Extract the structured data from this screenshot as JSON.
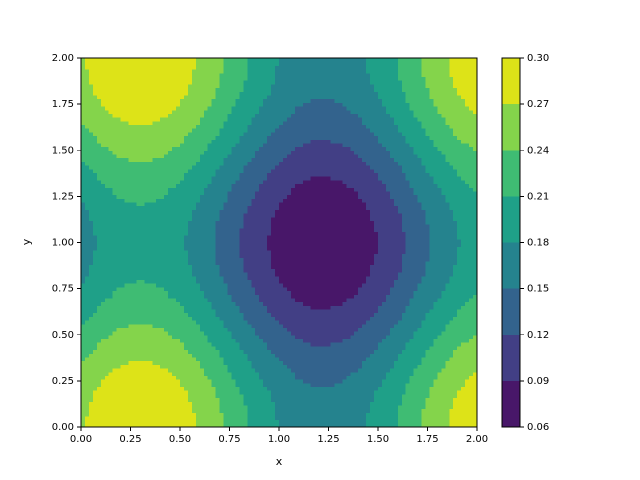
{
  "chart_data": {
    "type": "contourf",
    "xlabel": "x",
    "ylabel": "y",
    "xlim": [
      0,
      2
    ],
    "ylim": [
      0,
      2
    ],
    "xticks": [
      {
        "value": 0,
        "label": "0.00"
      },
      {
        "value": 0.25,
        "label": "0.25"
      },
      {
        "value": 0.5,
        "label": "0.50"
      },
      {
        "value": 0.75,
        "label": "0.75"
      },
      {
        "value": 1,
        "label": "1.00"
      },
      {
        "value": 1.25,
        "label": "1.25"
      },
      {
        "value": 1.5,
        "label": "1.50"
      },
      {
        "value": 1.75,
        "label": "1.75"
      },
      {
        "value": 2,
        "label": "2.00"
      }
    ],
    "yticks": [
      {
        "value": 0,
        "label": "0.00"
      },
      {
        "value": 0.25,
        "label": "0.25"
      },
      {
        "value": 0.5,
        "label": "0.50"
      },
      {
        "value": 0.75,
        "label": "0.75"
      },
      {
        "value": 1,
        "label": "1.00"
      },
      {
        "value": 1.25,
        "label": "1.25"
      },
      {
        "value": 1.5,
        "label": "1.50"
      },
      {
        "value": 1.75,
        "label": "1.75"
      },
      {
        "value": 2,
        "label": "2.00"
      }
    ],
    "levels": [
      {
        "value": 0.06,
        "label": "0.06"
      },
      {
        "value": 0.09,
        "label": "0.09"
      },
      {
        "value": 0.12,
        "label": "0.12"
      },
      {
        "value": 0.15,
        "label": "0.15"
      },
      {
        "value": 0.18,
        "label": "0.18"
      },
      {
        "value": 0.21,
        "label": "0.21"
      },
      {
        "value": 0.24,
        "label": "0.24"
      },
      {
        "value": 0.27,
        "label": "0.27"
      },
      {
        "value": 0.3,
        "label": "0.30"
      }
    ],
    "colors": [
      "#481769",
      "#423f85",
      "#33638d",
      "#25838e",
      "#1fa088",
      "#3fbc73",
      "#84d44b",
      "#dde318"
    ],
    "x": [
      0,
      0.1,
      0.2,
      0.3,
      0.4,
      0.5,
      0.6,
      0.7,
      0.8,
      0.9,
      1,
      1.1,
      1.2,
      1.3,
      1.4,
      1.5,
      1.6,
      1.7,
      1.8,
      1.9,
      2
    ],
    "y": [
      0,
      0.1,
      0.2,
      0.3,
      0.4,
      0.5,
      0.6,
      0.7,
      0.8,
      0.9,
      1,
      1.1,
      1.2,
      1.3,
      1.4,
      1.5,
      1.6,
      1.7,
      1.8,
      1.9,
      2
    ],
    "z": [
      [
        0.266,
        0.284,
        0.296,
        0.3,
        0.296,
        0.284,
        0.266,
        0.244,
        0.22,
        0.198,
        0.179,
        0.166,
        0.16,
        0.163,
        0.173,
        0.19,
        0.211,
        0.235,
        0.258,
        0.278,
        0.292
      ],
      [
        0.264,
        0.282,
        0.294,
        0.298,
        0.294,
        0.282,
        0.264,
        0.242,
        0.218,
        0.196,
        0.177,
        0.164,
        0.158,
        0.161,
        0.171,
        0.188,
        0.209,
        0.233,
        0.256,
        0.276,
        0.29
      ],
      [
        0.257,
        0.275,
        0.287,
        0.291,
        0.287,
        0.275,
        0.257,
        0.235,
        0.211,
        0.189,
        0.17,
        0.157,
        0.151,
        0.154,
        0.164,
        0.181,
        0.202,
        0.226,
        0.249,
        0.269,
        0.283
      ],
      [
        0.245,
        0.263,
        0.275,
        0.279,
        0.275,
        0.263,
        0.245,
        0.223,
        0.199,
        0.177,
        0.158,
        0.145,
        0.139,
        0.142,
        0.152,
        0.169,
        0.19,
        0.214,
        0.237,
        0.257,
        0.271
      ],
      [
        0.232,
        0.25,
        0.262,
        0.266,
        0.262,
        0.25,
        0.232,
        0.21,
        0.186,
        0.164,
        0.145,
        0.132,
        0.126,
        0.129,
        0.139,
        0.156,
        0.177,
        0.201,
        0.224,
        0.244,
        0.258
      ],
      [
        0.216,
        0.234,
        0.246,
        0.25,
        0.246,
        0.234,
        0.216,
        0.194,
        0.17,
        0.148,
        0.129,
        0.116,
        0.11,
        0.113,
        0.123,
        0.14,
        0.161,
        0.185,
        0.208,
        0.228,
        0.242
      ],
      [
        0.201,
        0.219,
        0.231,
        0.235,
        0.231,
        0.219,
        0.201,
        0.179,
        0.155,
        0.133,
        0.114,
        0.101,
        0.095,
        0.098,
        0.108,
        0.125,
        0.146,
        0.17,
        0.193,
        0.213,
        0.227
      ],
      [
        0.187,
        0.205,
        0.217,
        0.221,
        0.217,
        0.205,
        0.187,
        0.165,
        0.141,
        0.119,
        0.1,
        0.087,
        0.081,
        0.084,
        0.094,
        0.111,
        0.132,
        0.156,
        0.179,
        0.199,
        0.213
      ],
      [
        0.176,
        0.194,
        0.206,
        0.21,
        0.206,
        0.194,
        0.176,
        0.154,
        0.13,
        0.108,
        0.089,
        0.076,
        0.07,
        0.073,
        0.083,
        0.1,
        0.121,
        0.145,
        0.168,
        0.188,
        0.202
      ],
      [
        0.169,
        0.187,
        0.199,
        0.203,
        0.199,
        0.187,
        0.169,
        0.147,
        0.123,
        0.101,
        0.082,
        0.069,
        0.063,
        0.066,
        0.076,
        0.093,
        0.114,
        0.138,
        0.161,
        0.181,
        0.195
      ],
      [
        0.166,
        0.184,
        0.196,
        0.2,
        0.196,
        0.184,
        0.166,
        0.144,
        0.12,
        0.098,
        0.079,
        0.066,
        0.06,
        0.063,
        0.073,
        0.09,
        0.111,
        0.135,
        0.158,
        0.178,
        0.192
      ],
      [
        0.169,
        0.187,
        0.199,
        0.203,
        0.199,
        0.187,
        0.169,
        0.147,
        0.123,
        0.101,
        0.082,
        0.069,
        0.063,
        0.066,
        0.076,
        0.093,
        0.114,
        0.138,
        0.161,
        0.181,
        0.195
      ],
      [
        0.176,
        0.194,
        0.206,
        0.21,
        0.206,
        0.194,
        0.176,
        0.154,
        0.13,
        0.108,
        0.089,
        0.076,
        0.07,
        0.073,
        0.083,
        0.1,
        0.121,
        0.145,
        0.168,
        0.188,
        0.202
      ],
      [
        0.187,
        0.205,
        0.217,
        0.221,
        0.217,
        0.205,
        0.187,
        0.165,
        0.141,
        0.119,
        0.1,
        0.087,
        0.081,
        0.084,
        0.094,
        0.111,
        0.132,
        0.156,
        0.179,
        0.199,
        0.213
      ],
      [
        0.201,
        0.219,
        0.231,
        0.235,
        0.231,
        0.219,
        0.201,
        0.179,
        0.155,
        0.133,
        0.114,
        0.101,
        0.095,
        0.098,
        0.108,
        0.125,
        0.146,
        0.17,
        0.193,
        0.213,
        0.227
      ],
      [
        0.216,
        0.234,
        0.246,
        0.25,
        0.246,
        0.234,
        0.216,
        0.194,
        0.17,
        0.148,
        0.129,
        0.116,
        0.11,
        0.113,
        0.123,
        0.14,
        0.161,
        0.185,
        0.208,
        0.228,
        0.242
      ],
      [
        0.232,
        0.25,
        0.262,
        0.266,
        0.262,
        0.25,
        0.232,
        0.21,
        0.186,
        0.164,
        0.145,
        0.132,
        0.126,
        0.129,
        0.139,
        0.156,
        0.177,
        0.201,
        0.224,
        0.244,
        0.258
      ],
      [
        0.245,
        0.263,
        0.275,
        0.279,
        0.275,
        0.263,
        0.245,
        0.223,
        0.199,
        0.177,
        0.158,
        0.145,
        0.139,
        0.142,
        0.152,
        0.169,
        0.19,
        0.214,
        0.237,
        0.257,
        0.271
      ],
      [
        0.257,
        0.275,
        0.287,
        0.291,
        0.287,
        0.275,
        0.257,
        0.235,
        0.211,
        0.189,
        0.17,
        0.157,
        0.151,
        0.154,
        0.164,
        0.181,
        0.202,
        0.226,
        0.249,
        0.269,
        0.283
      ],
      [
        0.264,
        0.282,
        0.294,
        0.298,
        0.294,
        0.282,
        0.264,
        0.242,
        0.218,
        0.196,
        0.177,
        0.164,
        0.158,
        0.161,
        0.171,
        0.188,
        0.209,
        0.233,
        0.256,
        0.276,
        0.29
      ],
      [
        0.266,
        0.284,
        0.296,
        0.3,
        0.296,
        0.284,
        0.266,
        0.244,
        0.22,
        0.198,
        0.179,
        0.166,
        0.16,
        0.163,
        0.173,
        0.19,
        0.211,
        0.235,
        0.258,
        0.278,
        0.292
      ]
    ]
  }
}
